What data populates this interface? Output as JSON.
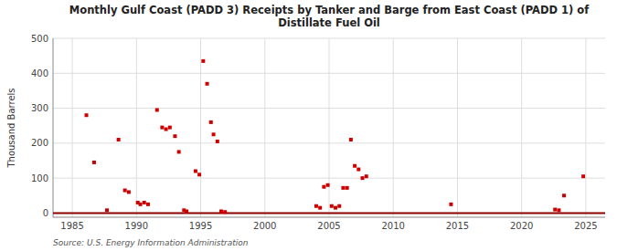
{
  "chart_data": {
    "type": "scatter",
    "title": "Monthly Gulf Coast (PADD 3) Receipts by Tanker and Barge from East Coast (PADD 1) of\nDistillate Fuel Oil",
    "ylabel": "Thousand Barrels",
    "source": "Source:  U.S. Energy Information Administration",
    "color": "#cc0000",
    "marker": "square",
    "grid": true,
    "xlim": [
      1983.5,
      2026.5
    ],
    "ylim": [
      -12,
      500
    ],
    "yticks": [
      0,
      100,
      200,
      300,
      400,
      500
    ],
    "xticks": [
      1985,
      1990,
      1995,
      2000,
      2005,
      2010,
      2015,
      2020,
      2025
    ],
    "x": [
      1986.1,
      1986.7,
      1987.7,
      1988.6,
      1989.1,
      1989.4,
      1990.1,
      1990.3,
      1990.6,
      1990.9,
      1991.6,
      1992.0,
      1992.3,
      1992.6,
      1993.0,
      1993.3,
      1993.7,
      1993.9,
      1994.6,
      1994.9,
      1995.2,
      1995.5,
      1995.8,
      1996.0,
      1996.3,
      1996.6,
      1996.9,
      2004.0,
      2004.3,
      2004.6,
      2004.9,
      2005.2,
      2005.5,
      2005.8,
      2006.1,
      2006.4,
      2006.7,
      2007.0,
      2007.3,
      2007.6,
      2007.9,
      2014.5,
      2022.6,
      2022.9,
      2023.3,
      2024.8
    ],
    "values": [
      280,
      145,
      8,
      210,
      65,
      60,
      30,
      25,
      30,
      25,
      295,
      245,
      240,
      245,
      220,
      175,
      8,
      5,
      120,
      110,
      435,
      370,
      260,
      225,
      205,
      5,
      3,
      20,
      15,
      75,
      80,
      20,
      15,
      20,
      72,
      72,
      210,
      135,
      125,
      100,
      105,
      25,
      10,
      8,
      50,
      105
    ]
  }
}
